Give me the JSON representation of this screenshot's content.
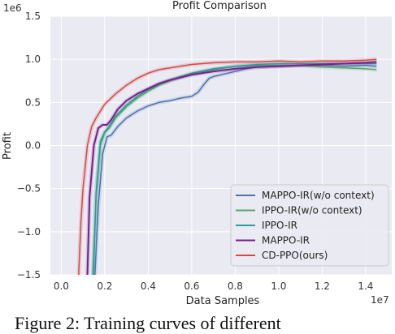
{
  "caption": "Figure 2: Training curves of different",
  "chart_data": {
    "type": "line",
    "title": "Profit Comparison",
    "xlabel": "Data Samples",
    "ylabel": "Profit",
    "x_multiplier": "1e7",
    "y_multiplier": "1e6",
    "xlim": [
      -0.05,
      1.52
    ],
    "ylim": [
      -1.5,
      1.5
    ],
    "x_ticks": [
      "0.0",
      "0.2",
      "0.4",
      "0.6",
      "0.8",
      "1.0",
      "1.2",
      "1.4"
    ],
    "x_tick_values": [
      0.0,
      0.2,
      0.4,
      0.6,
      0.8,
      1.0,
      1.2,
      1.4
    ],
    "y_ticks": [
      "1.5",
      "1.0",
      "0.5",
      "0.0",
      "−0.5",
      "−1.0",
      "−1.5"
    ],
    "y_tick_values": [
      1.5,
      1.0,
      0.5,
      0.0,
      -0.5,
      -1.0,
      -1.5
    ],
    "grid": true,
    "legend_position": "lower-right",
    "series": [
      {
        "name": "MAPPO-IR(w/o context)",
        "color": "#4c72b0",
        "x": [
          0.155,
          0.17,
          0.19,
          0.21,
          0.23,
          0.26,
          0.3,
          0.35,
          0.4,
          0.45,
          0.5,
          0.55,
          0.6,
          0.63,
          0.66,
          0.68,
          0.7,
          0.75,
          0.8,
          0.85,
          0.9,
          1.0,
          1.1,
          1.2,
          1.3,
          1.4,
          1.45
        ],
        "y": [
          -1.5,
          -0.7,
          -0.1,
          0.1,
          0.12,
          0.22,
          0.32,
          0.4,
          0.46,
          0.5,
          0.52,
          0.55,
          0.57,
          0.62,
          0.72,
          0.78,
          0.8,
          0.83,
          0.86,
          0.89,
          0.91,
          0.92,
          0.93,
          0.93,
          0.92,
          0.93,
          0.92
        ]
      },
      {
        "name": "IPPO-IR(w/o context)",
        "color": "#55a868",
        "x": [
          0.145,
          0.16,
          0.18,
          0.2,
          0.22,
          0.25,
          0.3,
          0.35,
          0.4,
          0.45,
          0.5,
          0.6,
          0.7,
          0.8,
          0.9,
          1.0,
          1.1,
          1.2,
          1.3,
          1.4,
          1.45
        ],
        "y": [
          -1.5,
          -0.6,
          0.0,
          0.15,
          0.2,
          0.32,
          0.45,
          0.55,
          0.63,
          0.7,
          0.75,
          0.83,
          0.88,
          0.92,
          0.93,
          0.93,
          0.93,
          0.91,
          0.9,
          0.89,
          0.88
        ]
      },
      {
        "name": "IPPO-IR",
        "color": "#2a9d9d",
        "x": [
          0.148,
          0.16,
          0.18,
          0.2,
          0.22,
          0.25,
          0.3,
          0.35,
          0.4,
          0.45,
          0.5,
          0.6,
          0.7,
          0.8,
          0.9,
          1.0,
          1.1,
          1.2,
          1.3,
          1.4,
          1.45
        ],
        "y": [
          -1.5,
          -0.55,
          0.05,
          0.16,
          0.22,
          0.34,
          0.47,
          0.57,
          0.65,
          0.71,
          0.76,
          0.84,
          0.89,
          0.92,
          0.94,
          0.95,
          0.95,
          0.95,
          0.95,
          0.95,
          0.95
        ]
      },
      {
        "name": "MAPPO-IR",
        "color": "#7b1f8c",
        "x": [
          0.12,
          0.13,
          0.15,
          0.17,
          0.19,
          0.21,
          0.23,
          0.26,
          0.3,
          0.35,
          0.4,
          0.45,
          0.5,
          0.6,
          0.7,
          0.8,
          0.9,
          1.0,
          1.1,
          1.2,
          1.3,
          1.4,
          1.45
        ],
        "y": [
          -1.5,
          -0.6,
          0.0,
          0.2,
          0.24,
          0.24,
          0.3,
          0.42,
          0.52,
          0.6,
          0.66,
          0.72,
          0.76,
          0.82,
          0.86,
          0.89,
          0.91,
          0.92,
          0.93,
          0.94,
          0.95,
          0.96,
          0.97
        ]
      },
      {
        "name": "CD-PPO(ours)",
        "color": "#d44a4a",
        "x": [
          0.08,
          0.09,
          0.1,
          0.12,
          0.14,
          0.16,
          0.2,
          0.25,
          0.3,
          0.35,
          0.4,
          0.45,
          0.5,
          0.6,
          0.7,
          0.8,
          0.9,
          1.0,
          1.1,
          1.2,
          1.3,
          1.4,
          1.45
        ],
        "y": [
          -1.5,
          -0.9,
          -0.5,
          0.0,
          0.22,
          0.32,
          0.48,
          0.6,
          0.7,
          0.78,
          0.84,
          0.88,
          0.9,
          0.94,
          0.96,
          0.97,
          0.97,
          0.98,
          0.97,
          0.98,
          0.98,
          0.99,
          1.0
        ]
      }
    ]
  }
}
